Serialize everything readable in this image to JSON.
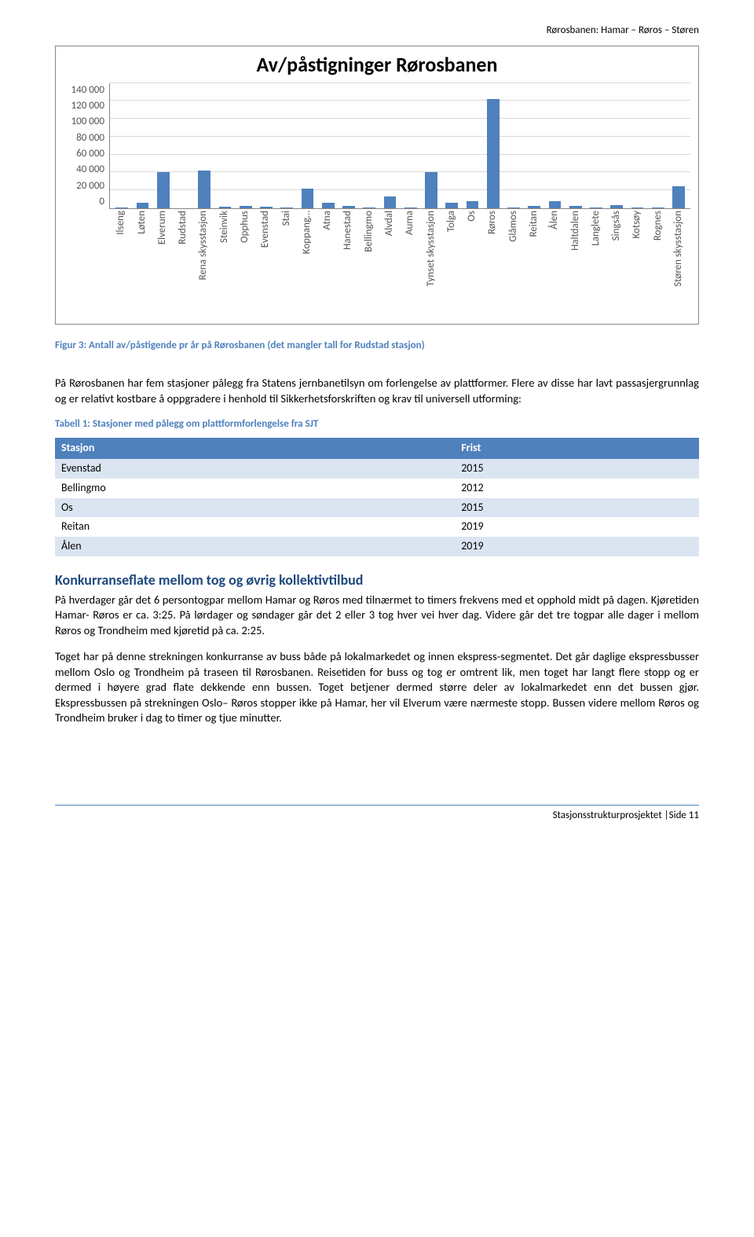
{
  "header": {
    "right": "Rørosbanen: Hamar – Røros – Støren"
  },
  "chart": {
    "type": "bar",
    "title": "Av/påstigninger Rørosbanen",
    "title_fontsize": 26,
    "ylim": [
      0,
      140000
    ],
    "ytick_step": 20000,
    "yticks": [
      "140 000",
      "120 000",
      "100 000",
      "80 000",
      "60 000",
      "40 000",
      "20 000",
      "0"
    ],
    "bar_color": "#4f81bd",
    "grid_color": "#d9d9d9",
    "axis_color": "#888888",
    "background_color": "#ffffff",
    "label_fontsize": 13,
    "categories": [
      "Ilseng",
      "Løten",
      "Elverum",
      "Rudstad",
      "Rena skysstasjon",
      "Steinvik",
      "Opphus",
      "Evenstad",
      "Stai",
      "Koppang…",
      "Atna",
      "Hanestad",
      "Bellingmo",
      "Alvdal",
      "Auma",
      "Tynset skysstasjon",
      "Tolga",
      "Os",
      "Røros",
      "Glåmos",
      "Reitan",
      "Ålen",
      "Haltdalen",
      "Langlete",
      "Singsås",
      "Kotsøy",
      "Rognes",
      "Støren skysstasjon"
    ],
    "values": [
      1000,
      6000,
      40000,
      0,
      42000,
      1500,
      2500,
      1500,
      1000,
      22000,
      6000,
      2000,
      500,
      13000,
      500,
      40000,
      6000,
      8000,
      122000,
      1000,
      2000,
      8000,
      2000,
      500,
      3000,
      500,
      500,
      24000
    ]
  },
  "figure_caption": "Figur 3: Antall av/påstigende pr år på Rørosbanen (det mangler tall for Rudstad stasjon)",
  "para1": "På Rørosbanen har fem stasjoner pålegg fra Statens jernbanetilsyn om forlengelse av plattformer. Flere av disse har lavt passasjergrunnlag og er relativt kostbare å oppgradere i henhold til Sikkerhetsforskriften og krav til universell utforming:",
  "table_caption": "Tabell 1: Stasjoner med pålegg om plattformforlengelse fra  SJT",
  "table": {
    "header_bg": "#4f81bd",
    "row_even_bg": "#dbe5f1",
    "row_odd_bg": "#ffffff",
    "columns": [
      "Stasjon",
      "Frist"
    ],
    "rows": [
      [
        "Evenstad",
        "2015"
      ],
      [
        "Bellingmo",
        "2012"
      ],
      [
        "Os",
        "2015"
      ],
      [
        "Reitan",
        "2019"
      ],
      [
        "Ålen",
        "2019"
      ]
    ]
  },
  "section_heading": "Konkurranseflate mellom tog og øvrig kollektivtilbud",
  "section_heading_color": "#1f497d",
  "para2": "På hverdager går det 6 persontogpar mellom Hamar og Røros med tilnærmet to timers frekvens med et opphold midt på dagen. Kjøretiden Hamar- Røros er ca. 3:25. På lørdager og søndager går det 2 eller 3 tog hver vei hver dag. Videre går det tre togpar alle dager i mellom Røros og Trondheim med kjøretid på ca. 2:25.",
  "para3": "Toget har på denne strekningen konkurranse av buss både på lokalmarkedet og innen ekspress-segmentet. Det går daglige ekspressbusser mellom Oslo og Trondheim på traseen til Rørosbanen. Reisetiden for buss og tog er omtrent lik, men toget har langt flere stopp og er dermed i høyere grad flate dekkende enn bussen. Toget betjener dermed større deler av lokalmarkedet enn det bussen gjør. Ekspressbussen på strekningen Oslo– Røros stopper ikke på Hamar, her vil Elverum være nærmeste stopp. Bussen videre mellom Røros og Trondheim bruker i dag to timer og tjue minutter.",
  "footer": {
    "text": "Stasjonsstrukturprosjektet |Side 11"
  }
}
